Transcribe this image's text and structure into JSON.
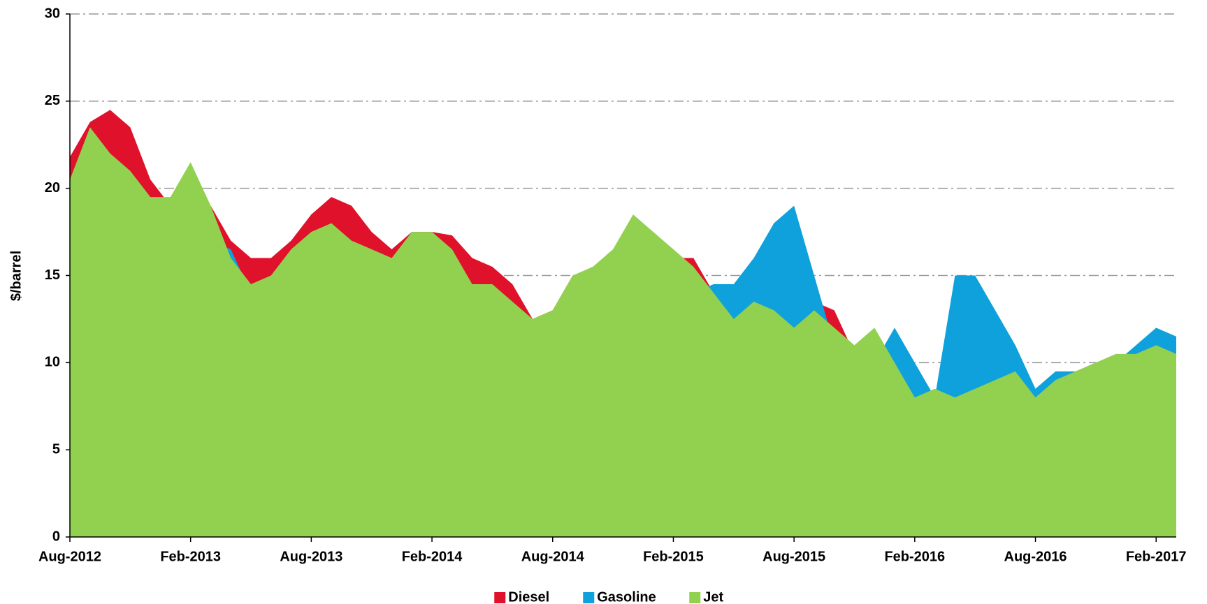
{
  "chart_data": {
    "type": "area",
    "ylabel": "$/barrel",
    "x": [
      "Aug-2012",
      "Sep-2012",
      "Oct-2012",
      "Nov-2012",
      "Dec-2012",
      "Jan-2013",
      "Feb-2013",
      "Mar-2013",
      "Apr-2013",
      "May-2013",
      "Jun-2013",
      "Jul-2013",
      "Aug-2013",
      "Sep-2013",
      "Oct-2013",
      "Nov-2013",
      "Dec-2013",
      "Jan-2014",
      "Feb-2014",
      "Mar-2014",
      "Apr-2014",
      "May-2014",
      "Jun-2014",
      "Jul-2014",
      "Aug-2014",
      "Sep-2014",
      "Oct-2014",
      "Nov-2014",
      "Dec-2014",
      "Jan-2015",
      "Feb-2015",
      "Mar-2015",
      "Apr-2015",
      "May-2015",
      "Jun-2015",
      "Jul-2015",
      "Aug-2015",
      "Sep-2015",
      "Oct-2015",
      "Nov-2015",
      "Dec-2015",
      "Jan-2016",
      "Feb-2016",
      "Mar-2016",
      "Apr-2016",
      "May-2016",
      "Jun-2016",
      "Jul-2016",
      "Aug-2016",
      "Sep-2016",
      "Oct-2016",
      "Nov-2016",
      "Dec-2016",
      "Jan-2017",
      "Feb-2017",
      "Mar-2017"
    ],
    "xticks": [
      "Aug-2012",
      "Feb-2013",
      "Aug-2013",
      "Feb-2014",
      "Aug-2014",
      "Feb-2015",
      "Aug-2015",
      "Feb-2016",
      "Aug-2016",
      "Feb-2017"
    ],
    "series": [
      {
        "name": "Diesel",
        "color": "#e0112b",
        "values": [
          21.8,
          23.8,
          24.5,
          23.5,
          20.5,
          19,
          20,
          19,
          17,
          16,
          16,
          17,
          18.5,
          19.5,
          19,
          17.5,
          16.5,
          17.5,
          17.5,
          17.3,
          16,
          15.5,
          14.5,
          12.5,
          13,
          15,
          15.4,
          16,
          17.5,
          16,
          16,
          16,
          14,
          13,
          14,
          13,
          12,
          13.5,
          13,
          10.5,
          11,
          9,
          7.5,
          8,
          8,
          8,
          8.5,
          9,
          7.8,
          8.8,
          9.5,
          10,
          10.3,
          10.5,
          10.8,
          10.5
        ]
      },
      {
        "name": "Gasoline",
        "color": "#0ea1dc",
        "values": [
          19,
          20,
          19,
          18,
          15,
          16,
          17,
          17,
          16.5,
          14,
          14,
          14,
          13,
          12,
          12,
          13,
          12,
          13,
          13,
          13,
          13,
          13,
          12,
          12.5,
          12,
          12,
          12,
          12,
          12,
          12,
          12,
          14,
          14.5,
          14.5,
          16,
          18,
          19,
          15,
          11,
          9,
          10,
          12,
          10,
          8,
          15,
          15,
          13,
          11,
          8.5,
          9.5,
          9.5,
          9.5,
          10,
          11,
          12,
          11.5
        ]
      },
      {
        "name": "Jet",
        "color": "#92d050",
        "values": [
          20.5,
          23.5,
          22,
          21,
          19.5,
          19.5,
          21.5,
          19,
          16,
          14.5,
          15,
          16.5,
          17.5,
          18,
          17,
          16.5,
          16,
          17.5,
          17.5,
          16.5,
          14.5,
          14.5,
          13.5,
          12.5,
          13,
          15,
          15.5,
          16.5,
          18.5,
          17.5,
          16.5,
          15.5,
          14,
          12.5,
          13.5,
          13,
          12,
          13,
          12,
          11,
          12,
          10,
          8,
          8.5,
          8,
          8.5,
          9,
          9.5,
          8,
          9,
          9.5,
          10,
          10.5,
          10.5,
          11,
          10.5
        ]
      }
    ],
    "ylim": [
      0,
      30
    ],
    "yticks": [
      0,
      5,
      10,
      15,
      20,
      25,
      30
    ],
    "grid": true,
    "legend": "bottom"
  }
}
